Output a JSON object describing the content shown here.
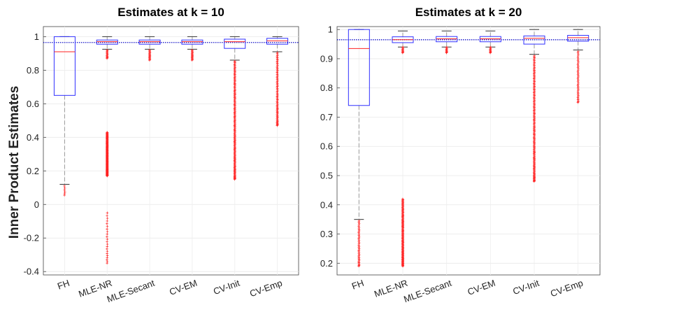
{
  "figure": {
    "shared_ylabel": "Inner Product Estimates"
  },
  "chart_data": [
    {
      "type": "box",
      "title": "Estimates at k = 10",
      "xlabel": "",
      "ylabel": "Inner Product Estimates",
      "categories": [
        "FH",
        "MLE-NR",
        "MLE-Secant",
        "CV-EM",
        "CV-Init",
        "CV-Emp"
      ],
      "ylim": [
        -0.42,
        1.06
      ],
      "yticks": [
        -0.4,
        -0.2,
        0,
        0.2,
        0.4,
        0.6,
        0.8,
        1
      ],
      "ytick_labels": [
        "-0.4",
        "-0.2",
        "0",
        "0.2",
        "0.4",
        "0.6",
        "0.8",
        "1"
      ],
      "grid": true,
      "reference_line": 0.965,
      "boxes": [
        {
          "name": "FH",
          "q1": 0.65,
          "median": 0.91,
          "q3": 1.0,
          "whisker_low": 0.12,
          "whisker_high": 1.0,
          "outliers": [
            [
              0.055,
              0.11,
              6
            ]
          ]
        },
        {
          "name": "MLE-NR",
          "q1": 0.955,
          "median": 0.97,
          "q3": 0.98,
          "whisker_low": 0.925,
          "whisker_high": 1.0,
          "outliers": [
            [
              0.87,
              0.92,
              14
            ],
            [
              0.17,
              0.43,
              150
            ],
            [
              -0.35,
              -0.05,
              22
            ]
          ]
        },
        {
          "name": "MLE-Secant",
          "q1": 0.955,
          "median": 0.97,
          "q3": 0.98,
          "whisker_low": 0.925,
          "whisker_high": 1.0,
          "outliers": [
            [
              0.86,
              0.92,
              16
            ]
          ]
        },
        {
          "name": "CV-EM",
          "q1": 0.955,
          "median": 0.97,
          "q3": 0.98,
          "whisker_low": 0.925,
          "whisker_high": 1.0,
          "outliers": [
            [
              0.86,
              0.92,
              16
            ]
          ]
        },
        {
          "name": "CV-Init",
          "q1": 0.93,
          "median": 0.97,
          "q3": 0.985,
          "whisker_low": 0.86,
          "whisker_high": 1.0,
          "outliers": [
            [
              0.15,
              0.855,
              150
            ]
          ]
        },
        {
          "name": "CV-Emp",
          "q1": 0.955,
          "median": 0.975,
          "q3": 0.99,
          "whisker_low": 0.91,
          "whisker_high": 1.0,
          "outliers": [
            [
              0.47,
              0.905,
              80
            ]
          ]
        }
      ]
    },
    {
      "type": "box",
      "title": "Estimates at k = 20",
      "xlabel": "",
      "ylabel": "",
      "categories": [
        "FH",
        "MLE-NR",
        "MLE-Secant",
        "CV-EM",
        "CV-Init",
        "CV-Emp"
      ],
      "ylim": [
        0.16,
        1.01
      ],
      "yticks": [
        0.2,
        0.3,
        0.4,
        0.5,
        0.6,
        0.7,
        0.8,
        0.9,
        1
      ],
      "ytick_labels": [
        "0.2",
        "0.3",
        "0.4",
        "0.5",
        "0.6",
        "0.7",
        "0.8",
        "0.9",
        "1"
      ],
      "grid": true,
      "reference_line": 0.965,
      "boxes": [
        {
          "name": "FH",
          "q1": 0.74,
          "median": 0.935,
          "q3": 1.0,
          "whisker_low": 0.35,
          "whisker_high": 1.0,
          "outliers": [
            [
              0.19,
              0.345,
              40
            ]
          ]
        },
        {
          "name": "MLE-NR",
          "q1": 0.955,
          "median": 0.965,
          "q3": 0.975,
          "whisker_low": 0.94,
          "whisker_high": 0.995,
          "outliers": [
            [
              0.92,
              0.94,
              10
            ],
            [
              0.19,
              0.42,
              120
            ]
          ]
        },
        {
          "name": "MLE-Secant",
          "q1": 0.958,
          "median": 0.968,
          "q3": 0.976,
          "whisker_low": 0.94,
          "whisker_high": 0.995,
          "outliers": [
            [
              0.92,
              0.94,
              10
            ]
          ]
        },
        {
          "name": "CV-EM",
          "q1": 0.958,
          "median": 0.968,
          "q3": 0.976,
          "whisker_low": 0.94,
          "whisker_high": 0.995,
          "outliers": [
            [
              0.92,
              0.94,
              10
            ]
          ]
        },
        {
          "name": "CV-Init",
          "q1": 0.95,
          "median": 0.97,
          "q3": 0.978,
          "whisker_low": 0.915,
          "whisker_high": 1.0,
          "outliers": [
            [
              0.48,
              0.91,
              150
            ]
          ]
        },
        {
          "name": "CV-Emp",
          "q1": 0.96,
          "median": 0.972,
          "q3": 0.98,
          "whisker_low": 0.93,
          "whisker_high": 1.0,
          "outliers": [
            [
              0.75,
              0.925,
              40
            ]
          ]
        }
      ]
    }
  ]
}
